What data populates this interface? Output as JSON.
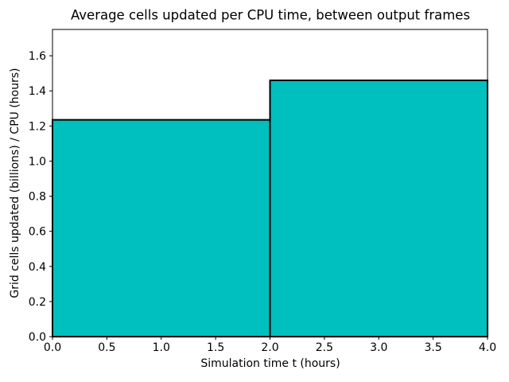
{
  "figure": {
    "background": "#ffffff"
  },
  "chart_data": {
    "type": "bar",
    "title": "Average cells updated per CPU time, between output frames",
    "xlabel": "Simulation time t (hours)",
    "ylabel": "Grid cells updated (billions) / CPU (hours)",
    "xlim": [
      0.0,
      4.0
    ],
    "ylim": [
      0.0,
      1.75
    ],
    "grid": false,
    "legend": false,
    "bar_fill": "#00bfbf",
    "bar_edge": "#000000",
    "bar_edge_width": 2,
    "bars": [
      {
        "x_start": 0.0,
        "x_end": 2.0,
        "value": 1.235
      },
      {
        "x_start": 2.0,
        "x_end": 4.0,
        "value": 1.46
      }
    ],
    "xticks": [
      {
        "value": 0.0,
        "label": "0.0"
      },
      {
        "value": 0.5,
        "label": "0.5"
      },
      {
        "value": 1.0,
        "label": "1.0"
      },
      {
        "value": 1.5,
        "label": "1.5"
      },
      {
        "value": 2.0,
        "label": "2.0"
      },
      {
        "value": 2.5,
        "label": "2.5"
      },
      {
        "value": 3.0,
        "label": "3.0"
      },
      {
        "value": 3.5,
        "label": "3.5"
      },
      {
        "value": 4.0,
        "label": "4.0"
      }
    ],
    "yticks": [
      {
        "value": 0.0,
        "label": "0.0"
      },
      {
        "value": 0.2,
        "label": "0.2"
      },
      {
        "value": 0.4,
        "label": "0.4"
      },
      {
        "value": 0.6,
        "label": "0.6"
      },
      {
        "value": 0.8,
        "label": "0.8"
      },
      {
        "value": 1.0,
        "label": "1.0"
      },
      {
        "value": 1.2,
        "label": "1.2"
      },
      {
        "value": 1.4,
        "label": "1.4"
      },
      {
        "value": 1.6,
        "label": "1.6"
      }
    ]
  }
}
